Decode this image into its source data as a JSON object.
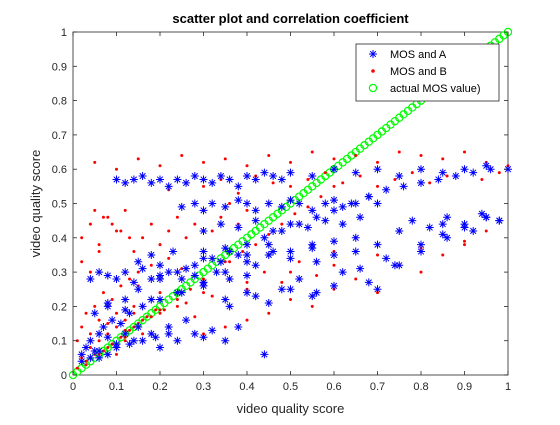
{
  "chart_data": {
    "type": "scatter",
    "title": "scatter plot and correlation coefficient",
    "xlabel": "video quality score",
    "ylabel": "video quality score",
    "xlim": [
      0,
      1
    ],
    "ylim": [
      0,
      1
    ],
    "xticks": [
      "0",
      "0.1",
      "0.2",
      "0.3",
      "0.4",
      "0.5",
      "0.6",
      "0.7",
      "0.8",
      "0.9",
      "1"
    ],
    "yticks": [
      "0",
      "0.1",
      "0.2",
      "0.3",
      "0.4",
      "0.5",
      "0.6",
      "0.7",
      "0.8",
      "0.9",
      "1"
    ],
    "grid": false,
    "legend_position": "top-right",
    "series": [
      {
        "name": "MOS and A",
        "marker": "asterisk",
        "color": "#0000ff",
        "x": [
          0.02,
          0.03,
          0.04,
          0.05,
          0.06,
          0.06,
          0.07,
          0.08,
          0.09,
          0.1,
          0.11,
          0.12,
          0.13,
          0.14,
          0.15,
          0.16,
          0.18,
          0.2,
          0.22,
          0.24,
          0.26,
          0.28,
          0.3,
          0.32,
          0.35,
          0.38,
          0.04,
          0.06,
          0.08,
          0.1,
          0.12,
          0.14,
          0.16,
          0.18,
          0.2,
          0.22,
          0.25,
          0.28,
          0.3,
          0.33,
          0.36,
          0.4,
          0.1,
          0.12,
          0.14,
          0.16,
          0.18,
          0.2,
          0.22,
          0.24,
          0.26,
          0.28,
          0.3,
          0.32,
          0.34,
          0.36,
          0.38,
          0.4,
          0.42,
          0.44,
          0.46,
          0.48,
          0.5,
          0.55,
          0.6,
          0.65,
          0.7,
          0.75,
          0.8,
          0.85,
          0.9,
          0.95,
          1.0,
          0.25,
          0.28,
          0.3,
          0.32,
          0.35,
          0.38,
          0.4,
          0.42,
          0.45,
          0.48,
          0.5,
          0.52,
          0.55,
          0.58,
          0.6,
          0.62,
          0.65,
          0.68,
          0.7,
          0.3,
          0.34,
          0.38,
          0.42,
          0.46,
          0.5,
          0.54,
          0.58,
          0.62,
          0.66,
          0.3,
          0.35,
          0.4,
          0.45,
          0.5,
          0.55,
          0.6,
          0.65,
          0.7,
          0.35,
          0.4,
          0.45,
          0.5,
          0.55,
          0.6,
          0.05,
          0.08,
          0.12,
          0.15,
          0.2,
          0.24,
          0.28,
          0.32,
          0.36,
          0.4,
          0.44,
          0.48,
          0.52,
          0.56,
          0.6,
          0.64,
          0.68,
          0.72,
          0.76,
          0.8,
          0.84,
          0.88,
          0.92,
          0.96,
          0.15,
          0.18,
          0.2,
          0.23,
          0.26,
          0.3,
          0.34,
          0.38,
          0.42,
          0.46,
          0.5,
          0.56,
          0.6,
          0.66,
          0.72,
          0.78,
          0.82,
          0.86,
          0.9,
          0.94,
          0.98,
          0.2,
          0.25,
          0.3,
          0.35,
          0.4,
          0.45,
          0.55,
          0.65,
          0.75,
          0.85,
          0.95,
          0.02,
          0.04,
          0.06,
          0.08,
          0.1,
          0.13,
          0.16,
          0.19,
          0.22,
          0.08,
          0.12,
          0.18,
          0.24,
          0.3,
          0.36,
          0.42,
          0.44,
          0.48,
          0.52,
          0.56,
          0.62,
          0.68,
          0.74,
          0.8,
          0.86,
          0.92,
          0.98,
          0.7,
          0.75,
          0.8,
          0.85,
          0.9,
          0.95
        ],
        "y": [
          0.06,
          0.08,
          0.1,
          0.07,
          0.12,
          0.05,
          0.14,
          0.11,
          0.16,
          0.09,
          0.15,
          0.12,
          0.18,
          0.1,
          0.14,
          0.2,
          0.12,
          0.08,
          0.14,
          0.1,
          0.16,
          0.12,
          0.11,
          0.13,
          0.1,
          0.14,
          0.28,
          0.3,
          0.29,
          0.28,
          0.3,
          0.27,
          0.31,
          0.28,
          0.29,
          0.3,
          0.28,
          0.29,
          0.27,
          0.3,
          0.28,
          0.29,
          0.57,
          0.56,
          0.57,
          0.58,
          0.56,
          0.57,
          0.55,
          0.57,
          0.56,
          0.58,
          0.57,
          0.56,
          0.58,
          0.57,
          0.55,
          0.58,
          0.57,
          0.59,
          0.58,
          0.57,
          0.59,
          0.58,
          0.6,
          0.59,
          0.6,
          0.58,
          0.6,
          0.59,
          0.6,
          0.61,
          0.6,
          0.49,
          0.5,
          0.48,
          0.5,
          0.49,
          0.51,
          0.5,
          0.48,
          0.5,
          0.49,
          0.51,
          0.5,
          0.48,
          0.5,
          0.51,
          0.49,
          0.5,
          0.52,
          0.5,
          0.42,
          0.44,
          0.43,
          0.45,
          0.42,
          0.44,
          0.43,
          0.45,
          0.44,
          0.46,
          0.36,
          0.37,
          0.35,
          0.38,
          0.36,
          0.37,
          0.39,
          0.36,
          0.38,
          0.22,
          0.24,
          0.21,
          0.25,
          0.23,
          0.26,
          0.18,
          0.2,
          0.22,
          0.25,
          0.28,
          0.3,
          0.32,
          0.34,
          0.36,
          0.38,
          0.4,
          0.42,
          0.44,
          0.46,
          0.48,
          0.5,
          0.52,
          0.54,
          0.55,
          0.56,
          0.57,
          0.58,
          0.59,
          0.6,
          0.33,
          0.35,
          0.32,
          0.36,
          0.31,
          0.34,
          0.33,
          0.35,
          0.32,
          0.36,
          0.34,
          0.33,
          0.35,
          0.31,
          0.34,
          0.45,
          0.43,
          0.46,
          0.44,
          0.47,
          0.45,
          0.22,
          0.24,
          0.27,
          0.3,
          0.33,
          0.35,
          0.38,
          0.4,
          0.42,
          0.44,
          0.46,
          0.04,
          0.05,
          0.07,
          0.06,
          0.08,
          0.09,
          0.1,
          0.11,
          0.12,
          0.21,
          0.19,
          0.22,
          0.24,
          0.26,
          0.2,
          0.23,
          0.06,
          0.25,
          0.28,
          0.24,
          0.3,
          0.27,
          0.32,
          0.38,
          0.4,
          0.42,
          0.45,
          0.25,
          0.32,
          0.36,
          0.41,
          0.43,
          0.46
        ]
      },
      {
        "name": "MOS and B",
        "marker": "dot",
        "color": "#ff0000",
        "x": [
          0.01,
          0.02,
          0.03,
          0.04,
          0.05,
          0.06,
          0.07,
          0.08,
          0.09,
          0.1,
          0.11,
          0.12,
          0.13,
          0.14,
          0.15,
          0.16,
          0.17,
          0.18,
          0.19,
          0.2,
          0.01,
          0.02,
          0.03,
          0.04,
          0.05,
          0.06,
          0.07,
          0.08,
          0.09,
          0.1,
          0.11,
          0.12,
          0.13,
          0.14,
          0.15,
          0.16,
          0.18,
          0.2,
          0.22,
          0.24,
          0.02,
          0.04,
          0.06,
          0.08,
          0.1,
          0.12,
          0.14,
          0.16,
          0.18,
          0.2,
          0.22,
          0.24,
          0.26,
          0.28,
          0.3,
          0.32,
          0.34,
          0.36,
          0.38,
          0.4,
          0.03,
          0.06,
          0.09,
          0.12,
          0.15,
          0.18,
          0.21,
          0.24,
          0.27,
          0.3,
          0.33,
          0.36,
          0.39,
          0.42,
          0.45,
          0.48,
          0.51,
          0.54,
          0.57,
          0.6,
          0.05,
          0.1,
          0.15,
          0.2,
          0.25,
          0.3,
          0.35,
          0.4,
          0.45,
          0.5,
          0.55,
          0.6,
          0.65,
          0.7,
          0.75,
          0.8,
          0.85,
          0.9,
          0.95,
          1.0,
          0.22,
          0.26,
          0.3,
          0.34,
          0.38,
          0.42,
          0.46,
          0.5,
          0.54,
          0.58,
          0.62,
          0.66,
          0.7,
          0.74,
          0.78,
          0.82,
          0.86,
          0.9,
          0.94,
          0.98,
          0.15,
          0.2,
          0.25,
          0.3,
          0.35,
          0.4,
          0.45,
          0.5,
          0.55,
          0.6,
          0.65,
          0.7,
          0.75,
          0.8,
          0.85,
          0.9,
          0.95,
          0.08,
          0.1,
          0.12,
          0.14,
          0.16,
          0.18,
          0.2,
          0.22,
          0.24,
          0.26,
          0.28,
          0.3,
          0.32,
          0.36,
          0.4,
          0.44,
          0.48,
          0.52,
          0.56,
          0.6,
          0.3,
          0.35,
          0.4,
          0.45,
          0.5,
          0.55,
          0.6,
          0.65,
          0.7,
          0.75,
          0.8,
          0.85,
          0.9,
          0.95,
          0.05,
          0.07,
          0.09,
          0.11,
          0.13,
          0.02,
          0.04,
          0.06
        ],
        "y": [
          0.02,
          0.05,
          0.04,
          0.08,
          0.06,
          0.1,
          0.07,
          0.12,
          0.09,
          0.14,
          0.11,
          0.16,
          0.13,
          0.18,
          0.15,
          0.2,
          0.17,
          0.22,
          0.19,
          0.24,
          0.1,
          0.14,
          0.18,
          0.12,
          0.2,
          0.16,
          0.24,
          0.08,
          0.22,
          0.06,
          0.26,
          0.1,
          0.28,
          0.14,
          0.3,
          0.12,
          0.32,
          0.18,
          0.34,
          0.2,
          0.4,
          0.44,
          0.38,
          0.46,
          0.42,
          0.48,
          0.36,
          0.4,
          0.44,
          0.38,
          0.42,
          0.46,
          0.4,
          0.44,
          0.48,
          0.42,
          0.46,
          0.5,
          0.44,
          0.48,
          0.03,
          0.06,
          0.09,
          0.11,
          0.14,
          0.17,
          0.19,
          0.22,
          0.25,
          0.28,
          0.3,
          0.33,
          0.36,
          0.38,
          0.41,
          0.44,
          0.47,
          0.49,
          0.52,
          0.55,
          0.62,
          0.6,
          0.63,
          0.61,
          0.64,
          0.62,
          0.63,
          0.61,
          0.64,
          0.62,
          0.65,
          0.63,
          0.64,
          0.62,
          0.65,
          0.64,
          0.63,
          0.65,
          0.62,
          0.61,
          0.54,
          0.56,
          0.55,
          0.57,
          0.53,
          0.58,
          0.56,
          0.55,
          0.57,
          0.59,
          0.56,
          0.58,
          0.55,
          0.57,
          0.59,
          0.56,
          0.58,
          0.6,
          0.57,
          0.59,
          0.26,
          0.28,
          0.31,
          0.24,
          0.33,
          0.27,
          0.35,
          0.3,
          0.38,
          0.32,
          0.4,
          0.35,
          0.42,
          0.37,
          0.44,
          0.39,
          0.46,
          0.15,
          0.18,
          0.13,
          0.2,
          0.16,
          0.22,
          0.19,
          0.14,
          0.24,
          0.21,
          0.17,
          0.26,
          0.23,
          0.28,
          0.25,
          0.3,
          0.27,
          0.33,
          0.29,
          0.36,
          0.12,
          0.14,
          0.16,
          0.18,
          0.22,
          0.2,
          0.25,
          0.28,
          0.24,
          0.32,
          0.3,
          0.35,
          0.38,
          0.42,
          0.48,
          0.46,
          0.44,
          0.42,
          0.4,
          0.33,
          0.3,
          0.36
        ]
      },
      {
        "name": "actual MOS value)",
        "marker": "circle",
        "color": "#00ff00",
        "x": [
          0.0,
          0.01,
          0.02,
          0.03,
          0.04,
          0.05,
          0.06,
          0.07,
          0.08,
          0.09,
          0.1,
          0.11,
          0.12,
          0.13,
          0.14,
          0.15,
          0.16,
          0.17,
          0.18,
          0.19,
          0.2,
          0.21,
          0.22,
          0.23,
          0.24,
          0.25,
          0.26,
          0.27,
          0.28,
          0.29,
          0.3,
          0.31,
          0.32,
          0.33,
          0.34,
          0.35,
          0.36,
          0.37,
          0.38,
          0.39,
          0.4,
          0.41,
          0.42,
          0.43,
          0.44,
          0.45,
          0.46,
          0.47,
          0.48,
          0.49,
          0.5,
          0.51,
          0.52,
          0.53,
          0.54,
          0.55,
          0.56,
          0.57,
          0.58,
          0.59,
          0.6,
          0.61,
          0.62,
          0.63,
          0.64,
          0.65,
          0.66,
          0.67,
          0.68,
          0.69,
          0.7,
          0.71,
          0.72,
          0.73,
          0.74,
          0.75,
          0.76,
          0.77,
          0.78,
          0.79,
          0.8,
          0.81,
          0.82,
          0.83,
          0.84,
          0.85,
          0.86,
          0.87,
          0.88,
          0.89,
          0.9,
          0.91,
          0.92,
          0.93,
          0.94,
          0.95,
          0.96,
          0.97,
          0.98,
          0.99,
          1.0
        ],
        "y": [
          0.0,
          0.01,
          0.02,
          0.03,
          0.04,
          0.05,
          0.06,
          0.07,
          0.08,
          0.09,
          0.1,
          0.11,
          0.12,
          0.13,
          0.14,
          0.15,
          0.16,
          0.17,
          0.18,
          0.19,
          0.2,
          0.21,
          0.22,
          0.23,
          0.24,
          0.25,
          0.26,
          0.27,
          0.28,
          0.29,
          0.3,
          0.31,
          0.32,
          0.33,
          0.34,
          0.35,
          0.36,
          0.37,
          0.38,
          0.39,
          0.4,
          0.41,
          0.42,
          0.43,
          0.44,
          0.45,
          0.46,
          0.47,
          0.48,
          0.49,
          0.5,
          0.51,
          0.52,
          0.53,
          0.54,
          0.55,
          0.56,
          0.57,
          0.58,
          0.59,
          0.6,
          0.61,
          0.62,
          0.63,
          0.64,
          0.65,
          0.66,
          0.67,
          0.68,
          0.69,
          0.7,
          0.71,
          0.72,
          0.73,
          0.74,
          0.75,
          0.76,
          0.77,
          0.78,
          0.79,
          0.8,
          0.81,
          0.82,
          0.83,
          0.84,
          0.85,
          0.86,
          0.87,
          0.88,
          0.89,
          0.9,
          0.91,
          0.92,
          0.93,
          0.94,
          0.95,
          0.96,
          0.97,
          0.98,
          0.99,
          1.0
        ]
      }
    ]
  }
}
